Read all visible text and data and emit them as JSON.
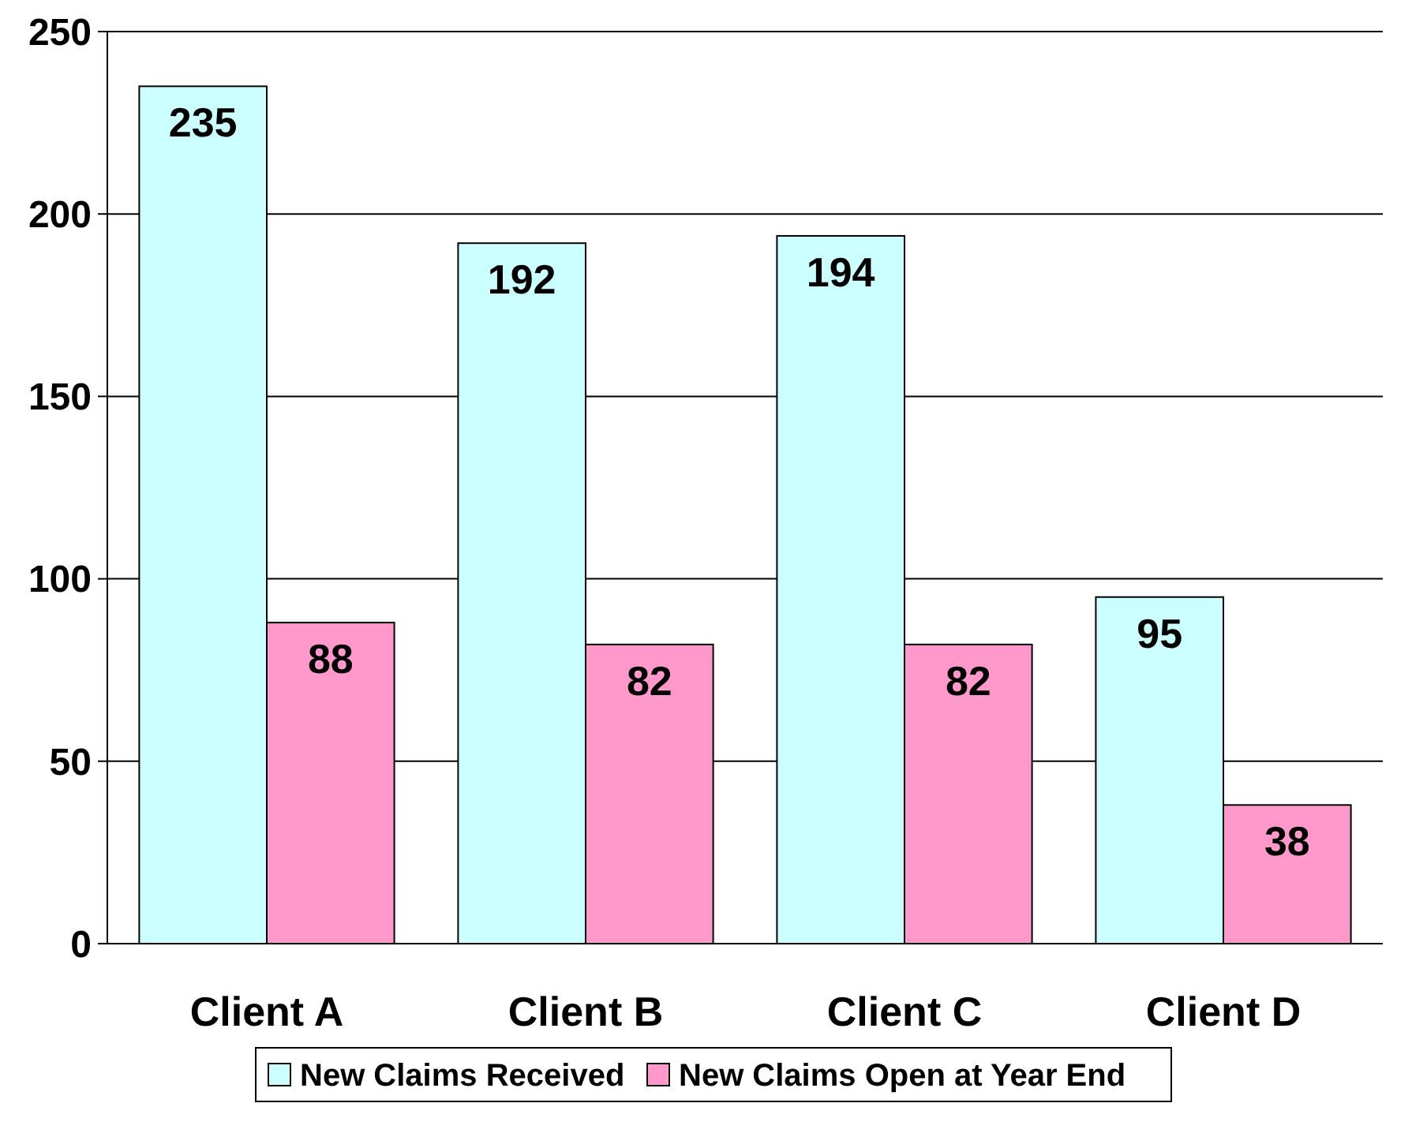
{
  "chart_data": {
    "type": "bar",
    "categories": [
      "Client A",
      "Client B",
      "Client C",
      "Client D"
    ],
    "series": [
      {
        "name": "New Claims Received",
        "color": "#ccffff",
        "values": [
          235,
          192,
          194,
          95
        ]
      },
      {
        "name": "New Claims Open at Year End",
        "color": "#ff99cc",
        "values": [
          88,
          82,
          82,
          38
        ]
      }
    ],
    "ylim": [
      0,
      250
    ],
    "yticks": [
      0,
      50,
      100,
      150,
      200,
      250
    ],
    "grid": "y",
    "legend": "bottom",
    "data_labels": true
  }
}
